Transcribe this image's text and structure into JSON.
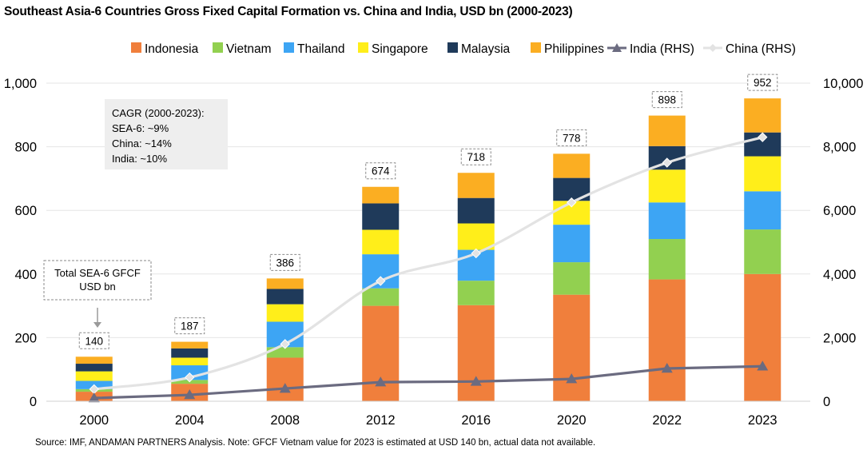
{
  "title": "Southeast Asia-6 Countries Gross Fixed Capital Formation vs. China and India, USD bn (2000-2023)",
  "source": "Source: IMF, ANDAMAN PARTNERS Analysis. Note: GFCF Vietnam value for 2023 is estimated at USD 140 bn, actual data not available.",
  "cagr_box": {
    "lines": [
      "CAGR (2000-2023):",
      "SEA-6: ~9%",
      "China: ~14%",
      "India: ~10%"
    ]
  },
  "total_callout": {
    "lines": [
      "Total SEA-6 GFCF",
      "USD bn"
    ]
  },
  "chart_data": {
    "type": "bar",
    "stacked": true,
    "categories": [
      "2000",
      "2004",
      "2008",
      "2012",
      "2016",
      "2020",
      "2022",
      "2023"
    ],
    "series": [
      {
        "name": "Indonesia",
        "color": "#f07f3c",
        "values": [
          30,
          55,
          137,
          300,
          302,
          335,
          383,
          400
        ]
      },
      {
        "name": "Vietnam",
        "color": "#92d050",
        "values": [
          8,
          12,
          33,
          55,
          77,
          102,
          127,
          140
        ]
      },
      {
        "name": "Thailand",
        "color": "#3da5f4",
        "values": [
          26,
          46,
          80,
          107,
          97,
          118,
          115,
          120
        ]
      },
      {
        "name": "Singapore",
        "color": "#ffee1a",
        "values": [
          30,
          24,
          55,
          77,
          83,
          75,
          103,
          110
        ]
      },
      {
        "name": "Malaysia",
        "color": "#1f3a5a",
        "values": [
          24,
          29,
          48,
          83,
          80,
          72,
          74,
          75
        ]
      },
      {
        "name": "Philippines",
        "color": "#fbae22",
        "values": [
          22,
          21,
          33,
          52,
          79,
          76,
          96,
          107
        ]
      }
    ],
    "totals": [
      140,
      187,
      386,
      674,
      718,
      778,
      898,
      952
    ],
    "lines": [
      {
        "name": "India (RHS)",
        "color": "#6b6b80",
        "marker": "triangle",
        "axis": "right",
        "values": [
          100,
          200,
          400,
          600,
          620,
          700,
          1030,
          1100
        ]
      },
      {
        "name": "China (RHS)",
        "color": "#e3e3e3",
        "marker": "diamond",
        "axis": "right",
        "values": [
          380,
          750,
          1800,
          3780,
          4650,
          6250,
          7500,
          8300
        ]
      }
    ],
    "y_left": {
      "min": 0,
      "max": 1000,
      "ticks": [
        0,
        200,
        400,
        600,
        800,
        1000
      ],
      "tick_labels": [
        "0",
        "200",
        "400",
        "600",
        "800",
        "1,000"
      ]
    },
    "y_right": {
      "min": 0,
      "max": 10000,
      "ticks": [
        0,
        2000,
        4000,
        6000,
        8000,
        10000
      ],
      "tick_labels": [
        "0",
        "2,000",
        "4,000",
        "6,000",
        "8,000",
        "10,000"
      ]
    },
    "grid": true,
    "legend_position": "top-right"
  }
}
